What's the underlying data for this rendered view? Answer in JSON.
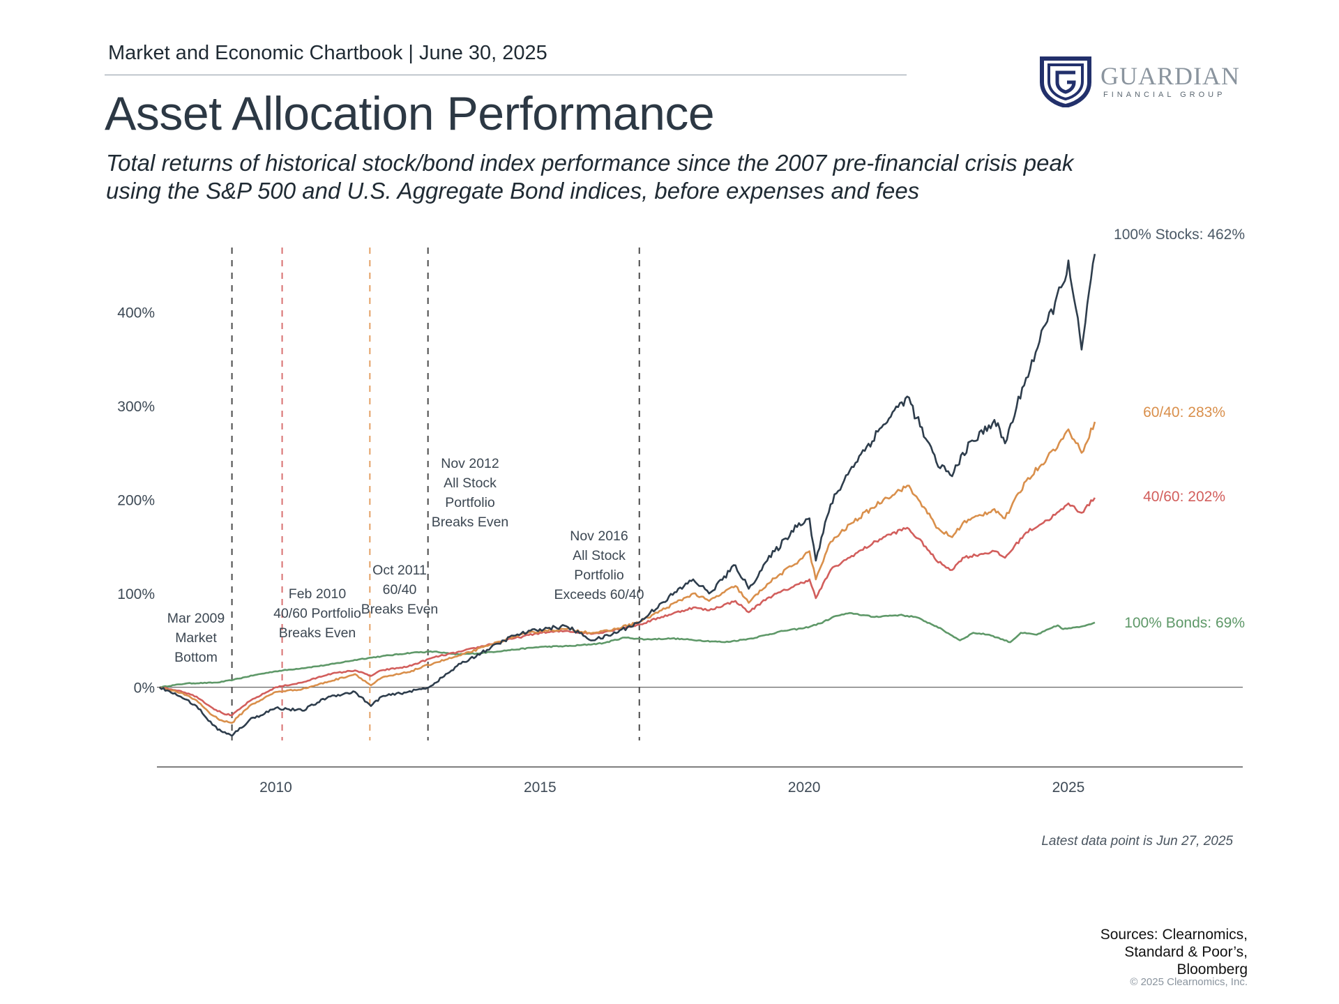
{
  "header": {
    "chartbook": "Market and Economic Chartbook | June 30, 2025",
    "title": "Asset Allocation Performance",
    "subtitle": "Total returns of historical stock/bond index performance since the 2007 pre-financial crisis peak using the S&P 500 and U.S. Aggregate Bond indices, before expenses and fees"
  },
  "logo": {
    "name": "GUARDIAN",
    "tagline": "FINANCIAL GROUP",
    "icon": "guardian-shield-g-logo",
    "color": "#22306b"
  },
  "footer": {
    "latest": "Latest data point is Jun 27, 2025",
    "sources": [
      "Sources: Clearnomics,",
      "Standard & Poor’s,",
      "Bloomberg"
    ],
    "copyright": "© 2025 Clearnomics, Inc."
  },
  "chart_data": {
    "type": "line",
    "title": "",
    "xlabel": "",
    "ylabel": "",
    "xlim": [
      2007.75,
      2028.3
    ],
    "ylim": [
      -85,
      480
    ],
    "x_ticks": [
      2010,
      2015,
      2020,
      2025
    ],
    "x_tick_labels": [
      "2010",
      "2015",
      "2020",
      "2025"
    ],
    "y_ticks": [
      0,
      100,
      200,
      300,
      400
    ],
    "y_tick_labels": [
      "0%",
      "100%",
      "200%",
      "300%",
      "400%"
    ],
    "grid": false,
    "legend": "end-of-line labels",
    "series": [
      {
        "key": "bonds",
        "label": "100% Bonds: 69%",
        "color": "#5e9868",
        "points": [
          [
            2007.8,
            0
          ],
          [
            2008.3,
            4
          ],
          [
            2008.9,
            5
          ],
          [
            2009.2,
            8
          ],
          [
            2009.6,
            13
          ],
          [
            2010,
            17
          ],
          [
            2010.6,
            21
          ],
          [
            2011,
            24
          ],
          [
            2011.6,
            30
          ],
          [
            2012,
            33
          ],
          [
            2012.6,
            37
          ],
          [
            2013.0,
            38
          ],
          [
            2013.4,
            35
          ],
          [
            2013.8,
            36
          ],
          [
            2014.5,
            40
          ],
          [
            2015,
            43
          ],
          [
            2015.6,
            44
          ],
          [
            2016.2,
            47
          ],
          [
            2016.6,
            53
          ],
          [
            2017,
            51
          ],
          [
            2017.5,
            52
          ],
          [
            2018,
            50
          ],
          [
            2018.5,
            48
          ],
          [
            2019,
            52
          ],
          [
            2019.6,
            60
          ],
          [
            2020,
            63
          ],
          [
            2020.3,
            68
          ],
          [
            2020.6,
            76
          ],
          [
            2020.9,
            79
          ],
          [
            2021.3,
            75
          ],
          [
            2021.8,
            77
          ],
          [
            2022.1,
            75
          ],
          [
            2022.3,
            70
          ],
          [
            2022.5,
            65
          ],
          [
            2022.8,
            55
          ],
          [
            2022.95,
            50
          ],
          [
            2023.2,
            58
          ],
          [
            2023.5,
            56
          ],
          [
            2023.9,
            48
          ],
          [
            2024.1,
            58
          ],
          [
            2024.4,
            56
          ],
          [
            2024.8,
            66
          ],
          [
            2024.9,
            62
          ],
          [
            2025.2,
            64
          ],
          [
            2025.5,
            69
          ]
        ]
      },
      {
        "key": "s40",
        "label": "40/60: 202%",
        "color": "#d25e5c",
        "points": [
          [
            2007.8,
            0
          ],
          [
            2008.2,
            -4
          ],
          [
            2008.5,
            -10
          ],
          [
            2008.8,
            -22
          ],
          [
            2009.0,
            -28
          ],
          [
            2009.17,
            -30
          ],
          [
            2009.5,
            -15
          ],
          [
            2010,
            0
          ],
          [
            2010.5,
            5
          ],
          [
            2011,
            14
          ],
          [
            2011.5,
            18
          ],
          [
            2011.8,
            12
          ],
          [
            2012,
            18
          ],
          [
            2012.5,
            22
          ],
          [
            2013,
            32
          ],
          [
            2013.5,
            38
          ],
          [
            2014,
            45
          ],
          [
            2014.5,
            52
          ],
          [
            2015,
            58
          ],
          [
            2015.5,
            60
          ],
          [
            2016,
            57
          ],
          [
            2016.3,
            60
          ],
          [
            2016.9,
            67
          ],
          [
            2017.3,
            75
          ],
          [
            2017.9,
            85
          ],
          [
            2018.2,
            82
          ],
          [
            2018.7,
            92
          ],
          [
            2018.95,
            80
          ],
          [
            2019.3,
            95
          ],
          [
            2019.9,
            110
          ],
          [
            2020.1,
            115
          ],
          [
            2020.22,
            95
          ],
          [
            2020.5,
            125
          ],
          [
            2020.9,
            140
          ],
          [
            2021.5,
            160
          ],
          [
            2021.95,
            170
          ],
          [
            2022.3,
            150
          ],
          [
            2022.5,
            135
          ],
          [
            2022.8,
            125
          ],
          [
            2023,
            138
          ],
          [
            2023.6,
            145
          ],
          [
            2023.8,
            138
          ],
          [
            2024.2,
            165
          ],
          [
            2024.6,
            178
          ],
          [
            2024.9,
            190
          ],
          [
            2025.0,
            196
          ],
          [
            2025.25,
            186
          ],
          [
            2025.5,
            202
          ]
        ]
      },
      {
        "key": "s60",
        "label": "60/40: 283%",
        "color": "#d98f4b",
        "points": [
          [
            2007.8,
            0
          ],
          [
            2008.2,
            -6
          ],
          [
            2008.5,
            -14
          ],
          [
            2008.8,
            -30
          ],
          [
            2009.0,
            -36
          ],
          [
            2009.17,
            -38
          ],
          [
            2009.5,
            -20
          ],
          [
            2010,
            -5
          ],
          [
            2010.5,
            -2
          ],
          [
            2011,
            6
          ],
          [
            2011.5,
            14
          ],
          [
            2011.8,
            2
          ],
          [
            2012,
            10
          ],
          [
            2012.5,
            16
          ],
          [
            2013,
            26
          ],
          [
            2013.5,
            34
          ],
          [
            2014,
            44
          ],
          [
            2014.5,
            54
          ],
          [
            2015,
            60
          ],
          [
            2015.5,
            62
          ],
          [
            2016,
            58
          ],
          [
            2016.3,
            60
          ],
          [
            2016.9,
            70
          ],
          [
            2017.3,
            82
          ],
          [
            2017.9,
            100
          ],
          [
            2018.2,
            92
          ],
          [
            2018.7,
            108
          ],
          [
            2018.95,
            90
          ],
          [
            2019.3,
            110
          ],
          [
            2019.9,
            135
          ],
          [
            2020.1,
            145
          ],
          [
            2020.22,
            115
          ],
          [
            2020.5,
            155
          ],
          [
            2020.9,
            175
          ],
          [
            2021.5,
            200
          ],
          [
            2021.95,
            215
          ],
          [
            2022.3,
            190
          ],
          [
            2022.5,
            170
          ],
          [
            2022.8,
            160
          ],
          [
            2023,
            175
          ],
          [
            2023.6,
            190
          ],
          [
            2023.8,
            180
          ],
          [
            2024.2,
            220
          ],
          [
            2024.6,
            245
          ],
          [
            2024.9,
            265
          ],
          [
            2025.0,
            275
          ],
          [
            2025.25,
            250
          ],
          [
            2025.5,
            283
          ]
        ]
      },
      {
        "key": "stocks",
        "label": "100% Stocks: 462%",
        "color": "#2e3d4c",
        "points": [
          [
            2007.8,
            0
          ],
          [
            2008.2,
            -10
          ],
          [
            2008.5,
            -20
          ],
          [
            2008.8,
            -40
          ],
          [
            2009.0,
            -48
          ],
          [
            2009.17,
            -52
          ],
          [
            2009.5,
            -35
          ],
          [
            2010,
            -22
          ],
          [
            2010.5,
            -25
          ],
          [
            2011,
            -10
          ],
          [
            2011.5,
            -5
          ],
          [
            2011.8,
            -20
          ],
          [
            2012,
            -10
          ],
          [
            2012.5,
            -5
          ],
          [
            2012.9,
            0
          ],
          [
            2013.5,
            25
          ],
          [
            2014,
            40
          ],
          [
            2014.5,
            55
          ],
          [
            2015,
            62
          ],
          [
            2015.5,
            65
          ],
          [
            2016,
            50
          ],
          [
            2016.3,
            55
          ],
          [
            2016.9,
            70
          ],
          [
            2017.3,
            90
          ],
          [
            2017.9,
            115
          ],
          [
            2018.2,
            100
          ],
          [
            2018.7,
            130
          ],
          [
            2018.95,
            105
          ],
          [
            2019.3,
            135
          ],
          [
            2019.9,
            175
          ],
          [
            2020.1,
            180
          ],
          [
            2020.22,
            135
          ],
          [
            2020.5,
            195
          ],
          [
            2020.9,
            235
          ],
          [
            2021.5,
            280
          ],
          [
            2021.95,
            310
          ],
          [
            2022.3,
            265
          ],
          [
            2022.5,
            240
          ],
          [
            2022.8,
            225
          ],
          [
            2023,
            250
          ],
          [
            2023.6,
            285
          ],
          [
            2023.8,
            260
          ],
          [
            2024.2,
            330
          ],
          [
            2024.6,
            390
          ],
          [
            2024.9,
            430
          ],
          [
            2025.0,
            455
          ],
          [
            2025.25,
            360
          ],
          [
            2025.5,
            462
          ]
        ]
      }
    ],
    "events": [
      {
        "x": 2009.17,
        "color": "#4a4a4a",
        "label": [
          "Mar 2009",
          "Market",
          "Bottom"
        ]
      },
      {
        "x": 2010.12,
        "color": "#d87070",
        "label": [
          "Feb 2010",
          "40/60 Portfolio",
          "Breaks Even"
        ]
      },
      {
        "x": 2011.78,
        "color": "#e3a064",
        "label": [
          "Oct 2011",
          "60/40",
          "Breaks Even"
        ]
      },
      {
        "x": 2012.88,
        "color": "#4a4a4a",
        "label": [
          "Nov 2012",
          "All Stock",
          "Portfolio",
          "Breaks Even"
        ]
      },
      {
        "x": 2016.88,
        "color": "#4a4a4a",
        "label": [
          "Nov 2016",
          "All Stock",
          "Portfolio",
          "Exceeds 60/40"
        ]
      }
    ]
  }
}
